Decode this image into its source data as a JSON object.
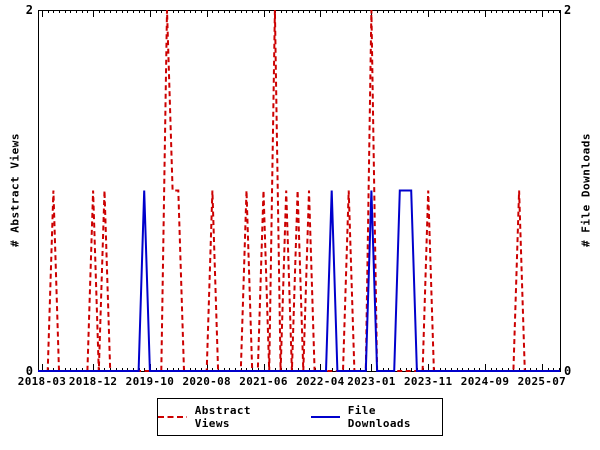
{
  "chart_data": {
    "type": "line",
    "title": "",
    "x_axis": {
      "start": "2018-03",
      "end": "2025-09",
      "tick_labels": [
        "2018-03",
        "2018-12",
        "2019-10",
        "2020-08",
        "2021-06",
        "2022-04",
        "2023-01",
        "2023-11",
        "2024-09",
        "2025-07"
      ],
      "minor_ticks": "monthly"
    },
    "ylim": [
      0,
      2
    ],
    "grid": false,
    "y_axis_left": {
      "label": "# Abstract Views",
      "ticks": [
        "2",
        "0"
      ]
    },
    "y_axis_right": {
      "label": "# File Downloads",
      "ticks": [
        "2",
        "0"
      ]
    },
    "legend_position": "bottom-center",
    "series": [
      {
        "name": "Abstract Views",
        "style": "dashed",
        "color": "#cc0000",
        "baseline_value": 0,
        "points": {
          "2018-05": 1,
          "2018-12": 1,
          "2019-02": 1,
          "2020-01": 2,
          "2020-02": 1,
          "2020-03": 1,
          "2020-09": 1,
          "2021-03": 1,
          "2021-06": 1,
          "2021-08": 2,
          "2021-10": 1,
          "2021-12": 1,
          "2022-02": 1,
          "2022-09": 1,
          "2023-01": 2,
          "2023-11": 1,
          "2025-03": 1
        }
      },
      {
        "name": "File Downloads",
        "style": "solid",
        "color": "#0000cc",
        "baseline_value": 0,
        "points": {
          "2019-09": 1,
          "2022-06": 1,
          "2023-01": 1,
          "2023-06": 1,
          "2023-07": 1,
          "2023-08": 1
        }
      }
    ]
  }
}
